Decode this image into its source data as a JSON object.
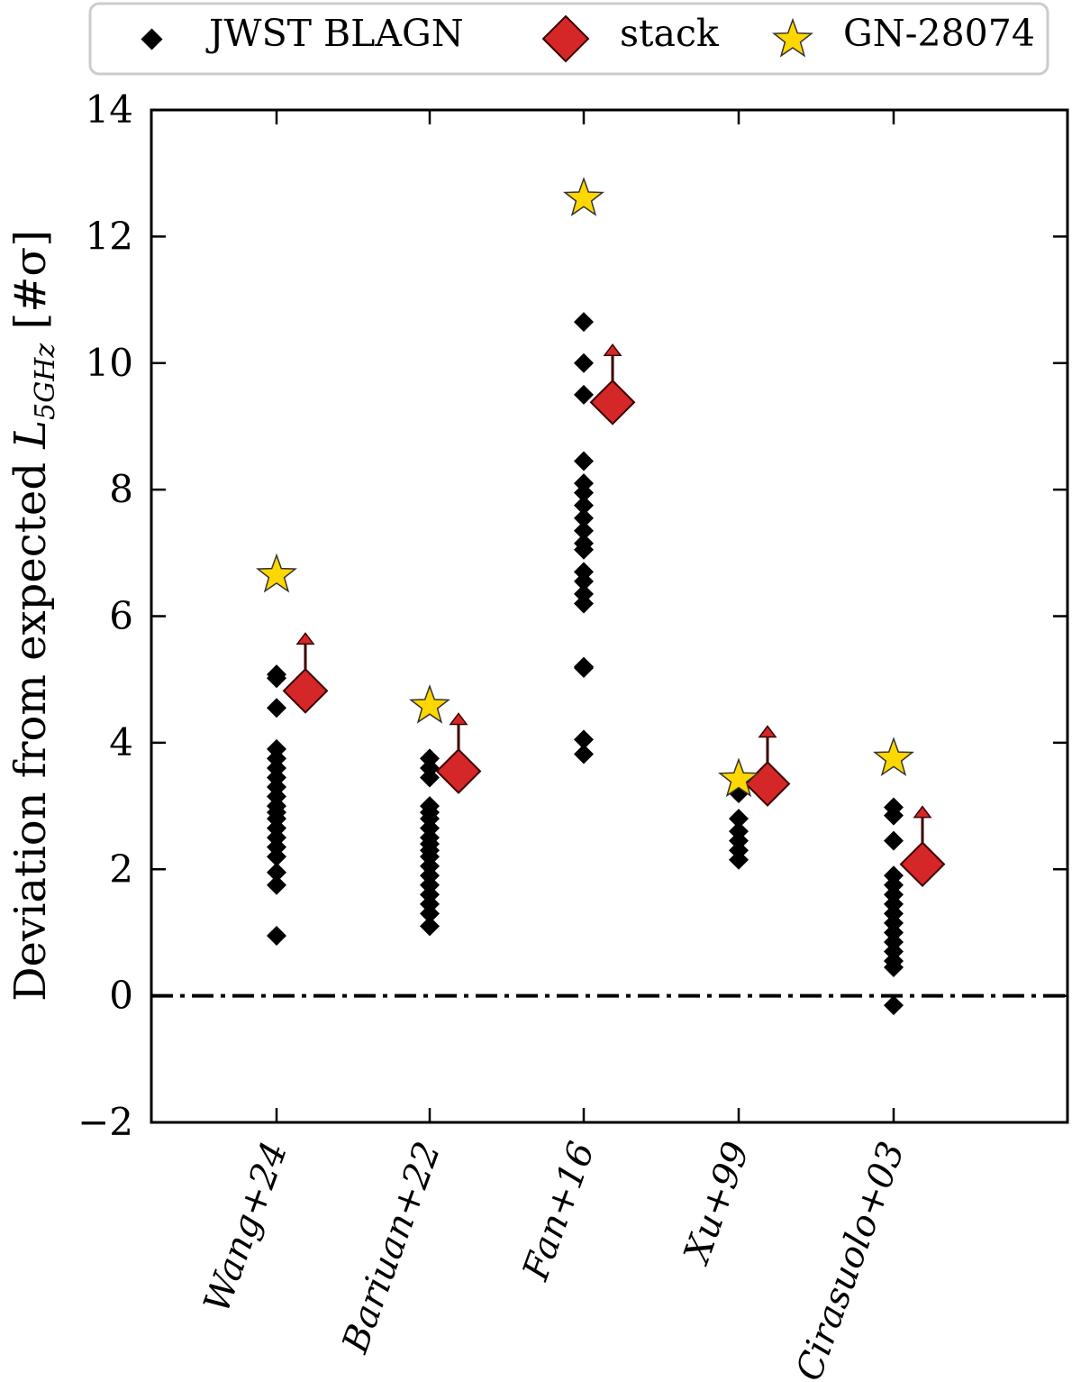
{
  "chart_data": {
    "type": "scatter",
    "categories": [
      "Wang+24",
      "Bariuan+22",
      "Fan+16",
      "Xu+99",
      "Cirasuolo+03"
    ],
    "ylabel_text": "Deviation from expected",
    "ylabel_symbol": "L",
    "ylabel_subscript": "5GHz",
    "ylabel_unit": "[#σ]",
    "ylim": [
      -2,
      14
    ],
    "yticks": [
      -2,
      0,
      2,
      4,
      6,
      8,
      10,
      12,
      14
    ],
    "ytick_labels": [
      "−2",
      "0",
      "2",
      "4",
      "6",
      "8",
      "10",
      "12",
      "14"
    ],
    "reference_line": {
      "y": 0,
      "style": "dash-dot"
    },
    "legend": {
      "position": "top",
      "entries": [
        {
          "label": "JWST BLAGN",
          "marker": "diamond-small"
        },
        {
          "label": "stack",
          "marker": "diamond-large"
        },
        {
          "label": "GN-28074",
          "marker": "star"
        }
      ]
    },
    "series": [
      {
        "name": "JWST BLAGN",
        "color": "#000000",
        "values": [
          [
            5.08,
            5.02,
            4.55,
            3.9,
            3.75,
            3.6,
            3.45,
            3.3,
            3.15,
            3.0,
            2.9,
            2.8,
            2.65,
            2.5,
            2.35,
            2.2,
            1.95,
            1.75,
            0.95
          ],
          [
            3.75,
            3.6,
            3.45,
            3.0,
            2.9,
            2.8,
            2.65,
            2.5,
            2.4,
            2.3,
            2.2,
            2.05,
            1.9,
            1.75,
            1.6,
            1.45,
            1.3,
            1.1
          ],
          [
            10.65,
            10.0,
            9.5,
            8.45,
            8.1,
            7.95,
            7.75,
            7.55,
            7.35,
            7.15,
            7.05,
            6.7,
            6.55,
            6.35,
            6.2,
            5.2,
            5.18,
            4.05,
            3.82
          ],
          [
            3.2,
            2.8,
            2.6,
            2.45,
            2.3,
            2.15
          ],
          [
            2.98,
            2.85,
            2.45,
            1.9,
            1.75,
            1.6,
            1.45,
            1.3,
            1.15,
            1.0,
            0.85,
            0.7,
            0.55,
            0.45,
            -0.15
          ]
        ]
      },
      {
        "name": "stack",
        "color": "#d62728",
        "lower_limit": true,
        "values": [
          4.82,
          3.55,
          9.38,
          3.35,
          2.08
        ]
      },
      {
        "name": "GN-28074",
        "color": "#ffd700",
        "values": [
          6.65,
          4.58,
          12.6,
          3.42,
          3.75
        ]
      }
    ]
  }
}
